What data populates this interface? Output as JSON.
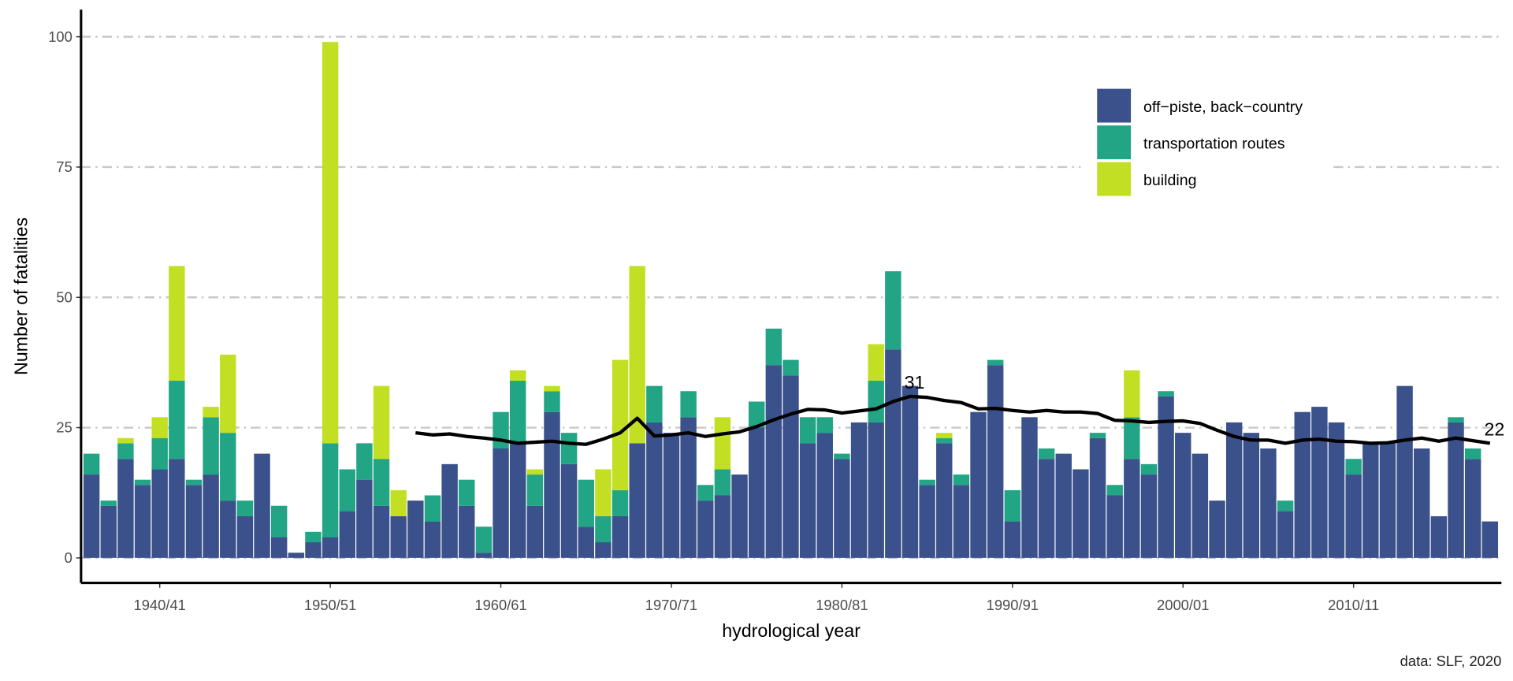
{
  "chart_data": {
    "type": "bar",
    "stacked": true,
    "x_label": "hydrological year",
    "y_label": "Number of fatalities",
    "caption": "data: SLF, 2020",
    "categories": [
      null,
      null,
      null,
      null,
      "1940/41",
      null,
      null,
      null,
      null,
      null,
      null,
      null,
      null,
      null,
      "1950/51",
      null,
      null,
      null,
      null,
      null,
      null,
      null,
      null,
      null,
      "1960/61",
      null,
      null,
      null,
      null,
      null,
      null,
      null,
      null,
      null,
      "1970/71",
      null,
      null,
      null,
      null,
      null,
      null,
      null,
      null,
      null,
      "1980/81",
      null,
      null,
      null,
      null,
      null,
      null,
      null,
      null,
      null,
      "1990/91",
      null,
      null,
      null,
      null,
      null,
      null,
      null,
      null,
      null,
      "2000/01",
      null,
      null,
      null,
      null,
      null,
      null,
      null,
      null,
      null,
      "2010/11",
      null,
      null,
      null,
      null,
      null,
      null,
      null,
      null
    ],
    "ylim": [
      -4.8,
      105.2
    ],
    "yticks": [
      0,
      25,
      50,
      75,
      100
    ],
    "grid": true,
    "legend": "top-right",
    "series": [
      {
        "name": "off−piste, back−country",
        "color": "#3b518b",
        "values": [
          16,
          10,
          19,
          14,
          17,
          19,
          14,
          16,
          11,
          8,
          20,
          4,
          1,
          3,
          4,
          9,
          15,
          10,
          8,
          11,
          7,
          18,
          10,
          1,
          21,
          22,
          10,
          28,
          18,
          6,
          3,
          8,
          22,
          26,
          24,
          27,
          11,
          12,
          16,
          25,
          37,
          35,
          22,
          24,
          19,
          26,
          26,
          40,
          33,
          14,
          22,
          14,
          28,
          37,
          7,
          27,
          19,
          20,
          17,
          23,
          12,
          19,
          16,
          31,
          24,
          20,
          11,
          26,
          24,
          21,
          9,
          28,
          29,
          26,
          16,
          22,
          22,
          33,
          21,
          8,
          26,
          19,
          7
        ]
      },
      {
        "name": "transportation routes",
        "color": "#21a585",
        "values": [
          4,
          1,
          3,
          1,
          6,
          15,
          1,
          11,
          13,
          3,
          0,
          6,
          0,
          2,
          18,
          8,
          7,
          9,
          0,
          0,
          5,
          0,
          5,
          5,
          7,
          12,
          6,
          4,
          6,
          9,
          5,
          5,
          0,
          7,
          0,
          5,
          3,
          5,
          0,
          5,
          7,
          3,
          5,
          3,
          1,
          0,
          8,
          15,
          0,
          1,
          1,
          2,
          0,
          1,
          6,
          0,
          2,
          0,
          0,
          1,
          2,
          8,
          2,
          1,
          0,
          0,
          0,
          0,
          0,
          0,
          2,
          0,
          0,
          0,
          3,
          0,
          0,
          0,
          0,
          0,
          1,
          2,
          0
        ]
      },
      {
        "name": "building",
        "color": "#c2df23",
        "values": [
          0,
          0,
          1,
          0,
          4,
          22,
          0,
          2,
          15,
          0,
          0,
          0,
          0,
          0,
          77,
          0,
          0,
          14,
          5,
          0,
          0,
          0,
          0,
          0,
          0,
          2,
          1,
          1,
          0,
          0,
          9,
          25,
          34,
          0,
          0,
          0,
          0,
          10,
          0,
          0,
          0,
          0,
          0,
          0,
          0,
          0,
          7,
          0,
          0,
          0,
          1,
          0,
          0,
          0,
          0,
          0,
          0,
          0,
          0,
          0,
          0,
          9,
          0,
          0,
          0,
          0,
          0,
          0,
          0,
          0,
          0,
          0,
          0,
          0,
          0,
          0,
          0,
          0,
          0,
          0,
          0,
          0,
          0
        ]
      }
    ],
    "line": {
      "color": "#000000",
      "values": [
        null,
        null,
        null,
        null,
        null,
        null,
        null,
        null,
        null,
        null,
        null,
        null,
        null,
        null,
        null,
        null,
        null,
        null,
        null,
        24,
        23.6,
        23.8,
        23.3,
        23,
        22.6,
        22,
        22.2,
        22.4,
        22,
        21.8,
        22.8,
        24,
        26.8,
        23.4,
        23.6,
        24,
        23.3,
        23.8,
        24.2,
        25.2,
        26.5,
        27.6,
        28.5,
        28.4,
        27.8,
        28.2,
        28.6,
        30,
        31,
        30.8,
        30.2,
        29.8,
        28.6,
        28.7,
        28.3,
        28,
        28.3,
        28,
        28,
        27.7,
        26.4,
        26.3,
        26,
        26.2,
        26.3,
        25.8,
        24.5,
        23.3,
        22.6,
        22.6,
        22,
        22.6,
        22.8,
        22.4,
        22.3,
        22,
        22.1,
        22.6,
        23,
        22.4,
        23,
        22.5,
        22
      ],
      "value_labels": [
        null,
        null,
        null,
        null,
        null,
        null,
        null,
        null,
        null,
        null,
        null,
        null,
        null,
        null,
        null,
        null,
        null,
        null,
        null,
        null,
        null,
        null,
        null,
        null,
        null,
        null,
        null,
        null,
        null,
        null,
        null,
        null,
        null,
        null,
        null,
        null,
        null,
        null,
        null,
        null,
        null,
        null,
        null,
        null,
        null,
        null,
        null,
        null,
        "31",
        null,
        null,
        null,
        null,
        null,
        null,
        null,
        null,
        null,
        null,
        null,
        null,
        null,
        null,
        null,
        null,
        null,
        null,
        null,
        null,
        null,
        null,
        null,
        null,
        null,
        null,
        null,
        null,
        null,
        null,
        null,
        null,
        null,
        "22"
      ]
    }
  }
}
